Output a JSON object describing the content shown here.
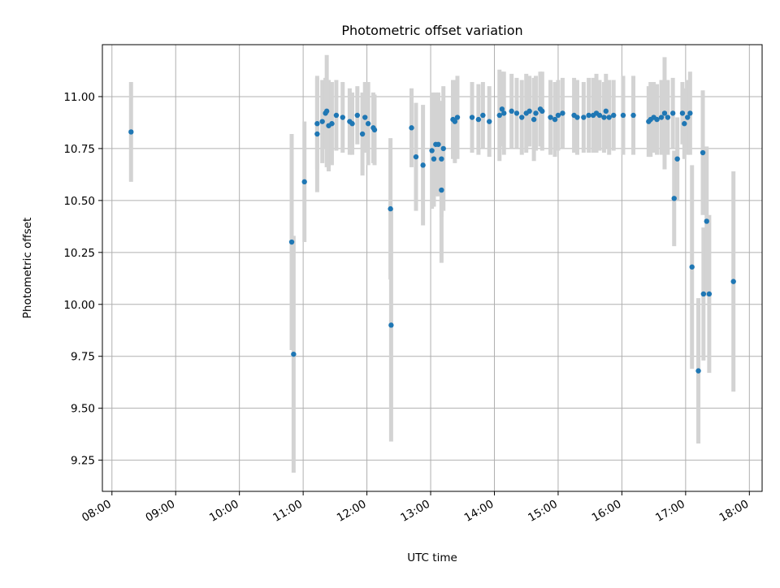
{
  "chart_data": {
    "type": "scatter",
    "title": "Photometric offset variation",
    "xlabel": "UTC time",
    "ylabel": "Photometric offset",
    "x_unit": "UTC time of day (hours)",
    "xlim": [
      7.85,
      18.2
    ],
    "ylim": [
      9.1,
      11.25
    ],
    "x_ticks": [
      8,
      9,
      10,
      11,
      12,
      13,
      14,
      15,
      16,
      17,
      18
    ],
    "x_tick_labels": [
      "08:00",
      "09:00",
      "10:00",
      "11:00",
      "12:00",
      "13:00",
      "14:00",
      "15:00",
      "16:00",
      "17:00",
      "18:00"
    ],
    "y_ticks": [
      9.25,
      9.5,
      9.75,
      10.0,
      10.25,
      10.5,
      10.75,
      11.0
    ],
    "y_tick_labels": [
      "9.25",
      "9.50",
      "9.75",
      "10.00",
      "10.25",
      "10.50",
      "10.75",
      "11.00"
    ],
    "grid": true,
    "legend": "none",
    "colors": {
      "points": "#1f77b4",
      "errorbars": "#d3d3d3",
      "grid": "#b0b0b0"
    },
    "series": [
      {
        "x": [
          8.3,
          10.82,
          10.85,
          11.02,
          11.22,
          11.22,
          11.3,
          11.35,
          11.37,
          11.4,
          11.45,
          11.52,
          11.62,
          11.73,
          11.77,
          11.85,
          11.93,
          11.97,
          12.02,
          12.1,
          12.12,
          12.37,
          12.38,
          12.7,
          12.77,
          12.88,
          13.02,
          13.05,
          13.08,
          13.12,
          13.17,
          13.17,
          13.2,
          13.35,
          13.38,
          13.42,
          13.65,
          13.75,
          13.82,
          13.92,
          14.08,
          14.12,
          14.15,
          14.27,
          14.35,
          14.43,
          14.5,
          14.55,
          14.62,
          14.65,
          14.72,
          14.75,
          14.88,
          14.95,
          15.0,
          15.07,
          15.25,
          15.3,
          15.4,
          15.48,
          15.55,
          15.6,
          15.65,
          15.72,
          15.75,
          15.8,
          15.87,
          16.02,
          16.18,
          16.42,
          16.45,
          16.5,
          16.55,
          16.62,
          16.67,
          16.72,
          16.8,
          16.82,
          16.87,
          16.95,
          16.98,
          17.03,
          17.07,
          17.1,
          17.2,
          17.27,
          17.28,
          17.33,
          17.37,
          17.75
        ],
        "y": [
          10.83,
          10.3,
          9.76,
          10.59,
          10.82,
          10.87,
          10.88,
          10.92,
          10.93,
          10.86,
          10.87,
          10.91,
          10.9,
          10.88,
          10.87,
          10.91,
          10.82,
          10.9,
          10.87,
          10.85,
          10.84,
          10.46,
          9.9,
          10.85,
          10.71,
          10.67,
          10.74,
          10.7,
          10.77,
          10.77,
          10.55,
          10.7,
          10.75,
          10.89,
          10.88,
          10.9,
          10.9,
          10.89,
          10.91,
          10.88,
          10.91,
          10.94,
          10.92,
          10.93,
          10.92,
          10.9,
          10.92,
          10.93,
          10.89,
          10.92,
          10.94,
          10.93,
          10.9,
          10.89,
          10.91,
          10.92,
          10.91,
          10.9,
          10.9,
          10.91,
          10.91,
          10.92,
          10.91,
          10.9,
          10.93,
          10.9,
          10.91,
          10.91,
          10.91,
          10.88,
          10.89,
          10.9,
          10.89,
          10.9,
          10.92,
          10.9,
          10.92,
          10.51,
          10.7,
          10.92,
          10.87,
          10.9,
          10.92,
          10.18,
          9.68,
          10.73,
          10.05,
          10.4,
          10.05,
          10.11
        ],
        "err": [
          0.24,
          0.52,
          0.57,
          0.29,
          0.28,
          0.22,
          0.2,
          0.17,
          0.27,
          0.22,
          0.2,
          0.17,
          0.17,
          0.16,
          0.15,
          0.14,
          0.2,
          0.17,
          0.2,
          0.17,
          0.17,
          0.34,
          0.56,
          0.19,
          0.26,
          0.29,
          0.28,
          0.23,
          0.25,
          0.25,
          0.35,
          0.28,
          0.3,
          0.19,
          0.2,
          0.2,
          0.17,
          0.17,
          0.16,
          0.17,
          0.22,
          0.18,
          0.2,
          0.18,
          0.17,
          0.18,
          0.19,
          0.17,
          0.2,
          0.18,
          0.18,
          0.19,
          0.18,
          0.18,
          0.17,
          0.17,
          0.18,
          0.18,
          0.17,
          0.18,
          0.18,
          0.19,
          0.17,
          0.17,
          0.18,
          0.18,
          0.17,
          0.19,
          0.19,
          0.17,
          0.18,
          0.17,
          0.17,
          0.18,
          0.27,
          0.18,
          0.17,
          0.23,
          0.2,
          0.15,
          0.17,
          0.18,
          0.2,
          0.49,
          0.35,
          0.3,
          0.32,
          0.36,
          0.38,
          0.53
        ]
      }
    ]
  }
}
